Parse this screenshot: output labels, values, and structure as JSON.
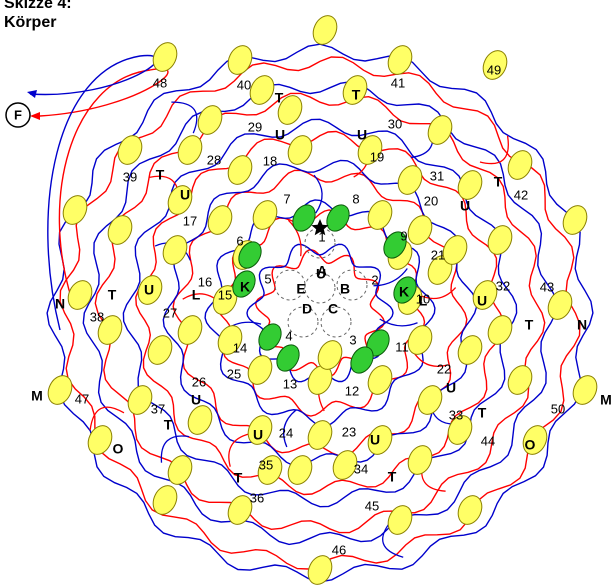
{
  "title": {
    "line1": "Skizze 4:",
    "line2": "Körper"
  },
  "exit_label": "F",
  "start_icon": "star-icon",
  "colors": {
    "red_path": "#ff0000",
    "blue_path": "#0000cc",
    "node_fill": "#ffff66",
    "node_stroke": "#8a8000",
    "inner_node_fill": "#33cc33",
    "inner_node_stroke": "#0a5a0a",
    "dashed_circle": "#666666"
  },
  "center_areas": [
    "A",
    "B",
    "C",
    "D",
    "E"
  ],
  "numbers": [
    "1",
    "2",
    "3",
    "4",
    "5",
    "6",
    "7",
    "8",
    "9",
    "10",
    "11",
    "12",
    "13",
    "14",
    "15",
    "16",
    "17",
    "18",
    "19",
    "20",
    "21",
    "22",
    "23",
    "24",
    "25",
    "26",
    "27",
    "28",
    "29",
    "30",
    "31",
    "32",
    "33",
    "34",
    "35",
    "36",
    "37",
    "38",
    "39",
    "40",
    "41",
    "42",
    "43",
    "44",
    "45",
    "46",
    "47",
    "48",
    "49",
    "50"
  ],
  "letters": [
    "K",
    "K",
    "L",
    "L",
    "U",
    "U",
    "U",
    "U",
    "U",
    "U",
    "U",
    "U",
    "U",
    "U",
    "U",
    "T",
    "T",
    "T",
    "T",
    "T",
    "T",
    "T",
    "T",
    "T",
    "T",
    "N",
    "N",
    "M",
    "M",
    "O",
    "O"
  ]
}
